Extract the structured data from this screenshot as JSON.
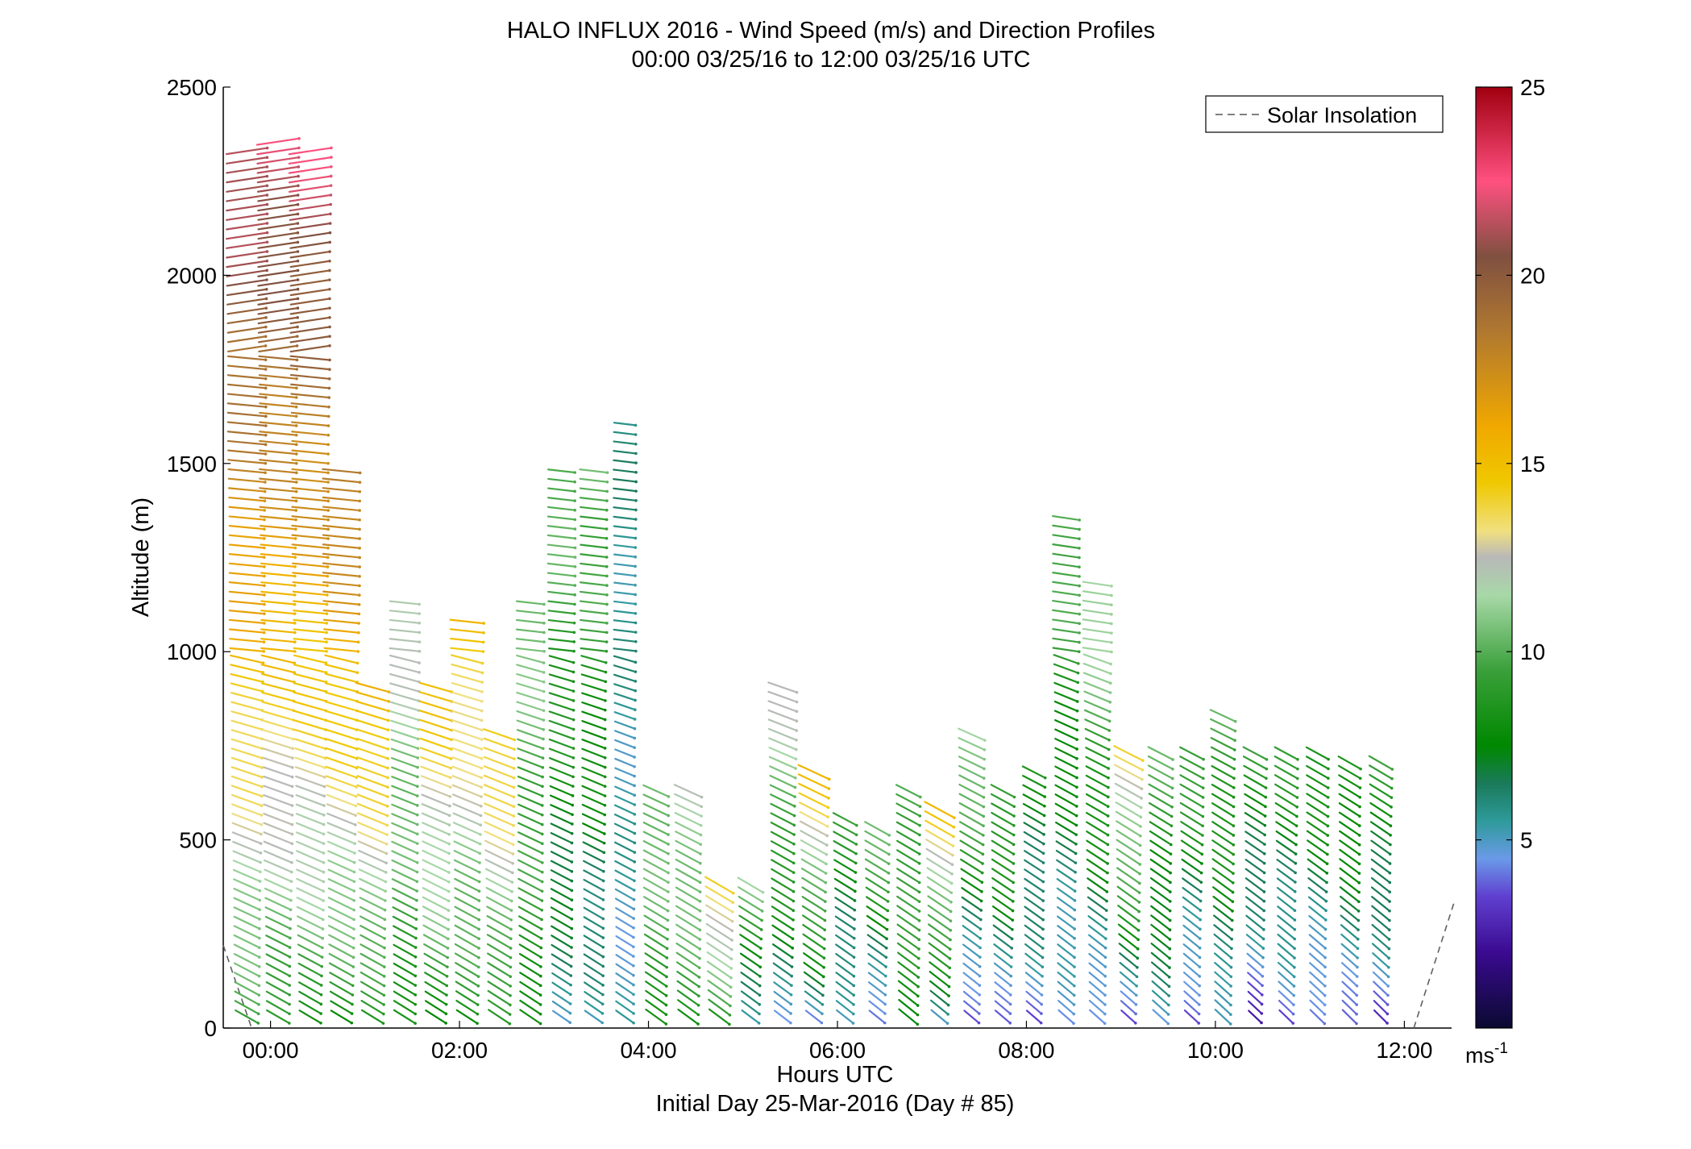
{
  "chart_data": {
    "type": "scatter",
    "subtype": "wind-barb-profile",
    "title": "HALO INFLUX 2016 - Wind Speed (m/s) and Direction Profiles",
    "subtitle": "00:00 03/25/16 to 12:00 03/25/16  UTC",
    "xlabel": "Hours UTC",
    "xlabel2": "Initial Day 25-Mar-2016 (Day # 85)",
    "ylabel": "Altitude (m)",
    "xlim": [
      -0.5,
      12.5
    ],
    "ylim": [
      0,
      2500
    ],
    "x_ticks": [
      {
        "value": 0,
        "label": "00:00"
      },
      {
        "value": 2,
        "label": "02:00"
      },
      {
        "value": 4,
        "label": "04:00"
      },
      {
        "value": 6,
        "label": "06:00"
      },
      {
        "value": 8,
        "label": "08:00"
      },
      {
        "value": 10,
        "label": "10:00"
      },
      {
        "value": 12,
        "label": "12:00"
      }
    ],
    "y_ticks": [
      {
        "value": 0,
        "label": "0"
      },
      {
        "value": 500,
        "label": "500"
      },
      {
        "value": 1000,
        "label": "1000"
      },
      {
        "value": 1500,
        "label": "1500"
      },
      {
        "value": 2000,
        "label": "2000"
      },
      {
        "value": 2500,
        "label": "2500"
      }
    ],
    "colorbar": {
      "range": [
        0,
        25
      ],
      "ticks": [
        {
          "value": 5,
          "label": "5"
        },
        {
          "value": 10,
          "label": "10"
        },
        {
          "value": 15,
          "label": "15"
        },
        {
          "value": 20,
          "label": "20"
        },
        {
          "value": 25,
          "label": "25"
        }
      ],
      "units_label": "ms",
      "units_exponent": "-1",
      "stops": [
        {
          "v": 0,
          "c": "#0a0a30"
        },
        {
          "v": 2,
          "c": "#3a0a90"
        },
        {
          "v": 3.5,
          "c": "#6040d0"
        },
        {
          "v": 4.5,
          "c": "#6a9ae8"
        },
        {
          "v": 5.5,
          "c": "#2e9a9a"
        },
        {
          "v": 6.5,
          "c": "#1a7a5a"
        },
        {
          "v": 7.5,
          "c": "#008800"
        },
        {
          "v": 9.5,
          "c": "#3aa03a"
        },
        {
          "v": 11.5,
          "c": "#a8d8a8"
        },
        {
          "v": 12.5,
          "c": "#b8b8b8"
        },
        {
          "v": 13.2,
          "c": "#f0e080"
        },
        {
          "v": 14.5,
          "c": "#f0c800"
        },
        {
          "v": 16,
          "c": "#f0a800"
        },
        {
          "v": 18.5,
          "c": "#b07830"
        },
        {
          "v": 20.5,
          "c": "#805040"
        },
        {
          "v": 22.5,
          "c": "#ff5080"
        },
        {
          "v": 25,
          "c": "#a00010"
        }
      ]
    },
    "legend": {
      "label": "Solar Insolation",
      "style": "dashed",
      "color": "#808080",
      "placement": "top-right"
    },
    "solar_insolation": [
      [
        -0.5,
        220
      ],
      [
        -0.2,
        0
      ],
      [
        12.1,
        0
      ],
      [
        12.7,
        340
      ]
    ],
    "barb_direction": "arrows point down-right below ~1000 m (southerly/westerly flow), nearly horizontal aloft",
    "profiles": [
      {
        "t": -0.25,
        "z_max": 2350,
        "spd_top": 22,
        "spd_bot": 9
      },
      {
        "t": 0.08,
        "z_max": 2370,
        "spd_top": 22,
        "spd_bot": 8.5
      },
      {
        "t": 0.42,
        "z_max": 2330,
        "spd_top": 22,
        "spd_bot": 8.5
      },
      {
        "t": 0.75,
        "z_max": 1500,
        "spd_top": 19,
        "spd_bot": 8
      },
      {
        "t": 1.08,
        "z_max": 920,
        "spd_top": 16,
        "spd_bot": 8
      },
      {
        "t": 1.42,
        "z_max": 1140,
        "spd_top": 12.5,
        "spd_bot": 8
      },
      {
        "t": 1.75,
        "z_max": 920,
        "spd_top": 15,
        "spd_bot": 8
      },
      {
        "t": 2.08,
        "z_max": 1090,
        "spd_top": 15,
        "spd_bot": 8
      },
      {
        "t": 2.42,
        "z_max": 800,
        "spd_top": 15,
        "spd_bot": 8
      },
      {
        "t": 2.75,
        "z_max": 1140,
        "spd_top": 11,
        "spd_bot": 8
      },
      {
        "t": 3.08,
        "z_max": 1500,
        "spd_top": 10.5,
        "spd_bot": 5.5
      },
      {
        "t": 3.42,
        "z_max": 1500,
        "spd_top": 10.5,
        "spd_bot": 5
      },
      {
        "t": 3.75,
        "z_max": 1620,
        "spd_top": 6,
        "spd_bot": 5
      },
      {
        "t": 4.08,
        "z_max": 640,
        "spd_top": 11,
        "spd_bot": 8.5
      },
      {
        "t": 4.42,
        "z_max": 640,
        "spd_top": 12,
        "spd_bot": 8.5
      },
      {
        "t": 4.75,
        "z_max": 400,
        "spd_top": 15,
        "spd_bot": 8
      },
      {
        "t": 5.08,
        "z_max": 380,
        "spd_top": 11,
        "spd_bot": 5
      },
      {
        "t": 5.42,
        "z_max": 920,
        "spd_top": 12.5,
        "spd_bot": 5
      },
      {
        "t": 5.75,
        "z_max": 690,
        "spd_top": 15,
        "spd_bot": 4.5
      },
      {
        "t": 6.08,
        "z_max": 570,
        "spd_top": 9,
        "spd_bot": 4.5
      },
      {
        "t": 6.42,
        "z_max": 530,
        "spd_top": 10.5,
        "spd_bot": 4
      },
      {
        "t": 6.75,
        "z_max": 630,
        "spd_top": 10,
        "spd_bot": 8
      },
      {
        "t": 7.08,
        "z_max": 600,
        "spd_top": 15,
        "spd_bot": 5
      },
      {
        "t": 7.42,
        "z_max": 790,
        "spd_top": 12,
        "spd_bot": 3
      },
      {
        "t": 7.75,
        "z_max": 640,
        "spd_top": 10,
        "spd_bot": 4
      },
      {
        "t": 8.08,
        "z_max": 680,
        "spd_top": 8,
        "spd_bot": 4
      },
      {
        "t": 8.42,
        "z_max": 1370,
        "spd_top": 10.5,
        "spd_bot": 4
      },
      {
        "t": 8.75,
        "z_max": 1180,
        "spd_top": 12,
        "spd_bot": 4
      },
      {
        "t": 9.08,
        "z_max": 750,
        "spd_top": 14,
        "spd_bot": 4
      },
      {
        "t": 9.42,
        "z_max": 750,
        "spd_top": 10,
        "spd_bot": 5
      },
      {
        "t": 9.75,
        "z_max": 750,
        "spd_top": 10,
        "spd_bot": 3
      },
      {
        "t": 10.08,
        "z_max": 830,
        "spd_top": 10,
        "spd_bot": 5
      },
      {
        "t": 10.42,
        "z_max": 740,
        "spd_top": 9,
        "spd_bot": 3
      },
      {
        "t": 10.75,
        "z_max": 740,
        "spd_top": 9,
        "spd_bot": 3.5
      },
      {
        "t": 11.08,
        "z_max": 740,
        "spd_top": 9,
        "spd_bot": 3.5
      },
      {
        "t": 11.42,
        "z_max": 720,
        "spd_top": 9,
        "spd_bot": 4
      },
      {
        "t": 11.75,
        "z_max": 710,
        "spd_top": 9,
        "spd_bot": 3.5
      }
    ]
  }
}
